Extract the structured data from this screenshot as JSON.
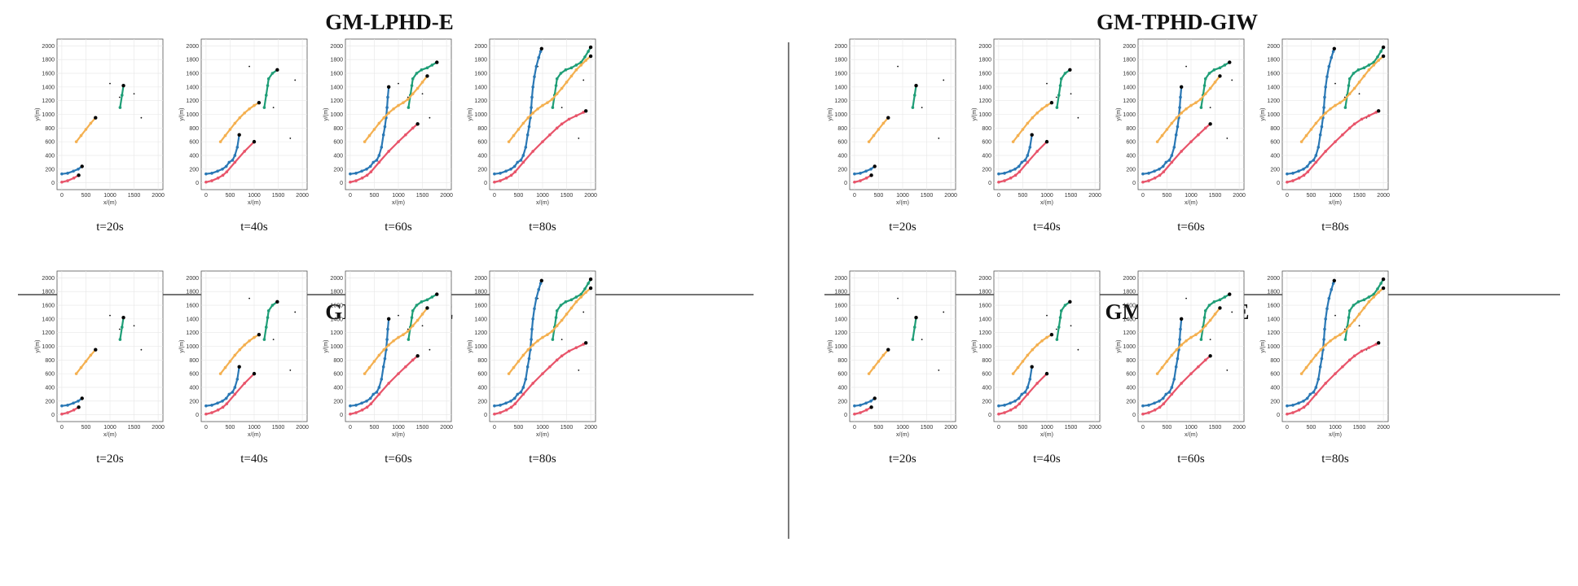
{
  "colors": {
    "blue": "#2a78b5",
    "red": "#e8546a",
    "green": "#1f9e77",
    "orange": "#f4b050"
  },
  "chart_data": {
    "type": "scatter",
    "axes": {
      "xlabel": "x/(m)",
      "ylabel": "y/(m)",
      "xlim": [
        -100,
        2100
      ],
      "ylim": [
        -100,
        2100
      ],
      "xticks": [
        0,
        500,
        1000,
        1500,
        2000
      ],
      "yticks": [
        0,
        200,
        400,
        600,
        800,
        1000,
        1200,
        1400,
        1600,
        1800,
        2000
      ]
    },
    "panels": [
      {
        "title": "GM-LPHD-E",
        "captions": [
          "t=20s",
          "t=40s",
          "t=60s",
          "t=80s"
        ]
      },
      {
        "title": "GM-TPHD-GIW",
        "captions": [
          "t=20s",
          "t=40s",
          "t=60s",
          "t=80s"
        ]
      },
      {
        "title": "GM-TPHD-E",
        "captions": [
          "t=20s",
          "t=40s",
          "t=60s",
          "t=80s"
        ]
      },
      {
        "title": "GM-TCPHD-E",
        "captions": [
          "t=20s",
          "t=40s",
          "t=60s",
          "t=80s"
        ]
      }
    ],
    "series": [
      {
        "name": "target-blue",
        "color": "blue",
        "x": [
          0,
          120,
          240,
          340,
          420,
          480,
          550,
          600,
          650,
          690,
          720,
          745,
          765,
          780,
          800,
          830,
          870,
          920,
          960,
          980
        ],
        "y": [
          130,
          140,
          170,
          200,
          240,
          300,
          330,
          400,
          520,
          700,
          820,
          950,
          1100,
          1250,
          1400,
          1550,
          1700,
          1830,
          1920,
          1960
        ]
      },
      {
        "name": "target-red",
        "color": "red",
        "x": [
          0,
          120,
          250,
          350,
          430,
          600,
          800,
          1000,
          1150,
          1300,
          1400,
          1550,
          1700,
          1850,
          1900
        ],
        "y": [
          10,
          30,
          70,
          110,
          160,
          300,
          460,
          600,
          700,
          800,
          860,
          930,
          980,
          1030,
          1050
        ]
      },
      {
        "name": "target-green",
        "color": "green",
        "x": [
          1210,
          1250,
          1280,
          1300,
          1380,
          1480,
          1600,
          1700,
          1800,
          1880,
          1950,
          2000
        ],
        "y": [
          1100,
          1280,
          1420,
          1520,
          1600,
          1650,
          1680,
          1720,
          1760,
          1840,
          1920,
          1980
        ]
      },
      {
        "name": "target-orange",
        "color": "orange",
        "x": [
          300,
          400,
          500,
          600,
          700,
          800,
          900,
          1000,
          1100,
          1200,
          1300,
          1400,
          1500,
          1600,
          1700,
          1800,
          1900,
          2000
        ],
        "y": [
          600,
          690,
          780,
          870,
          950,
          1020,
          1080,
          1130,
          1170,
          1220,
          1300,
          1380,
          1470,
          1560,
          1650,
          1720,
          1790,
          1850
        ]
      }
    ],
    "snapshot_fractions": [
      0.25,
      0.5,
      0.75,
      1.0
    ]
  }
}
